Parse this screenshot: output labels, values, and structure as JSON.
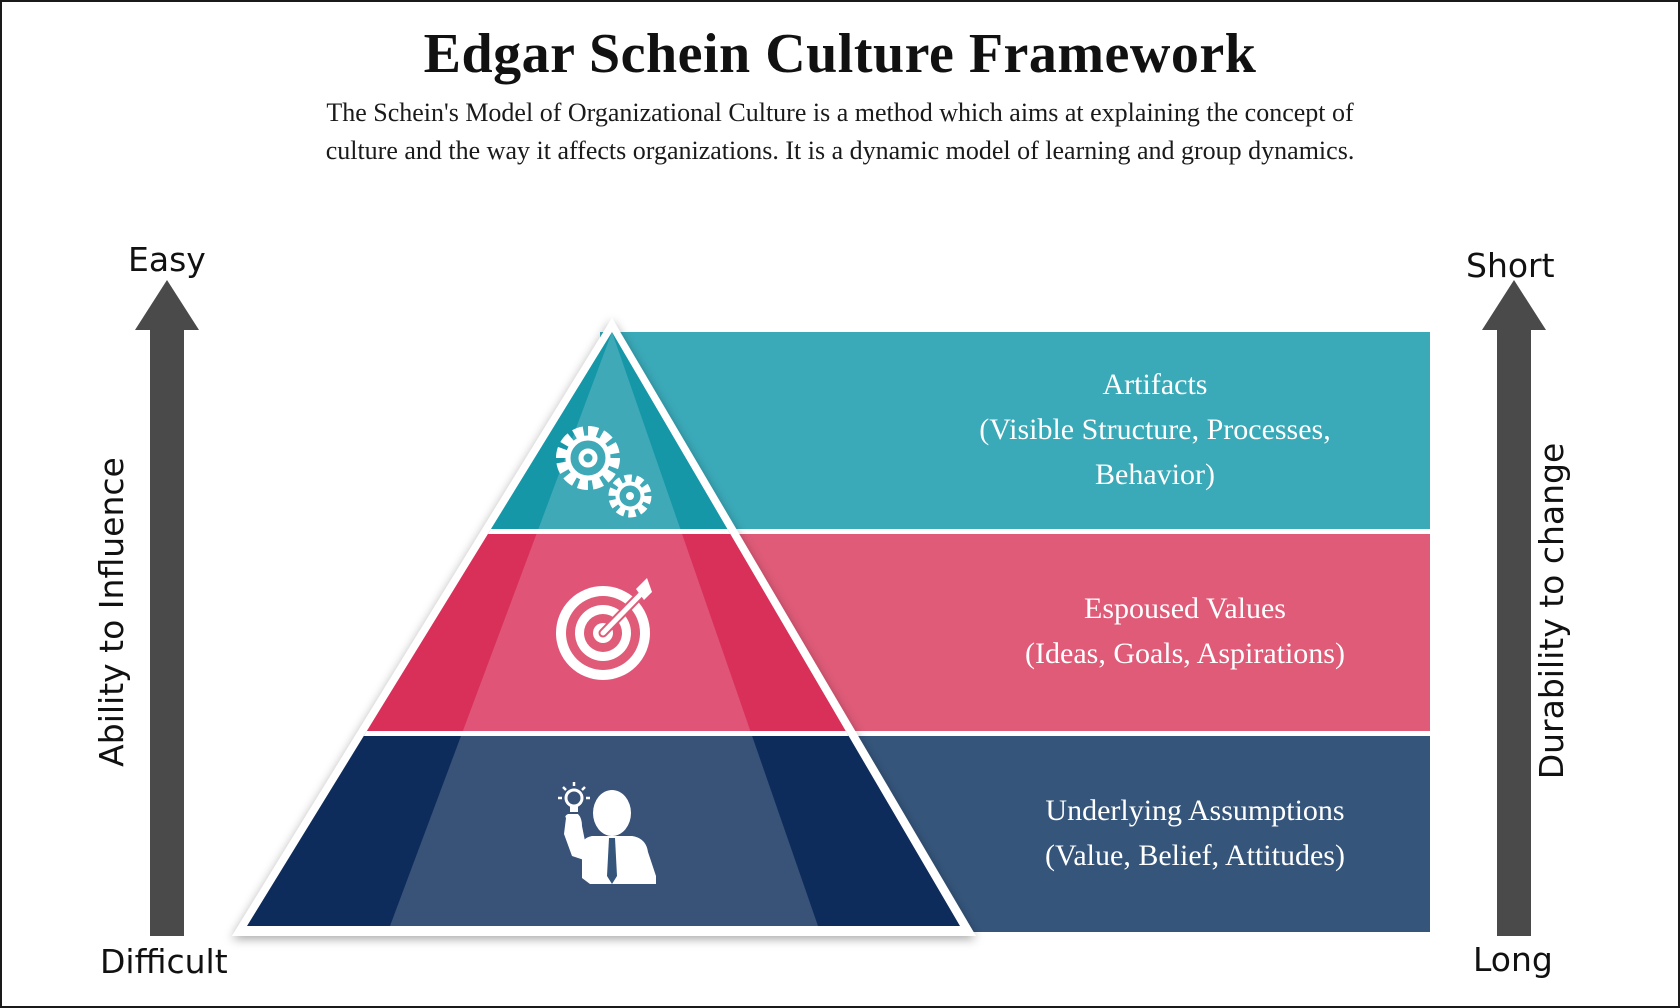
{
  "title": "Edgar Schein Culture Framework",
  "subtitle": "The Schein's Model of Organizational Culture is a method which aims at explaining the concept of culture and the way it affects organizations. It is a dynamic model of learning and group dynamics.",
  "left_axis": {
    "top_label": "Easy",
    "bottom_label": "Difficult",
    "title": "Ability to Influence"
  },
  "right_axis": {
    "top_label": "Short",
    "bottom_label": "Long",
    "title": "Durability to change"
  },
  "levels": [
    {
      "name": "Artifacts",
      "detail_line1": "(Visible Structure, Processes,",
      "detail_line2": "Behavior)",
      "icon": "gears-icon",
      "color": "#3aa9b8"
    },
    {
      "name": "Espoused Values",
      "detail_line1": "(Ideas, Goals, Aspirations)",
      "icon": "target-icon",
      "color": "#df5b78"
    },
    {
      "name": "Underlying Assumptions",
      "detail_line1": "(Value, Belief, Attitudes)",
      "icon": "person-idea-icon",
      "color": "#35557b"
    }
  ],
  "colors": {
    "arrow": "#4a4a4a",
    "teal_dark": "#1597a8",
    "pink_dark": "#d9305a",
    "navy_dark": "#0e2c5b"
  }
}
